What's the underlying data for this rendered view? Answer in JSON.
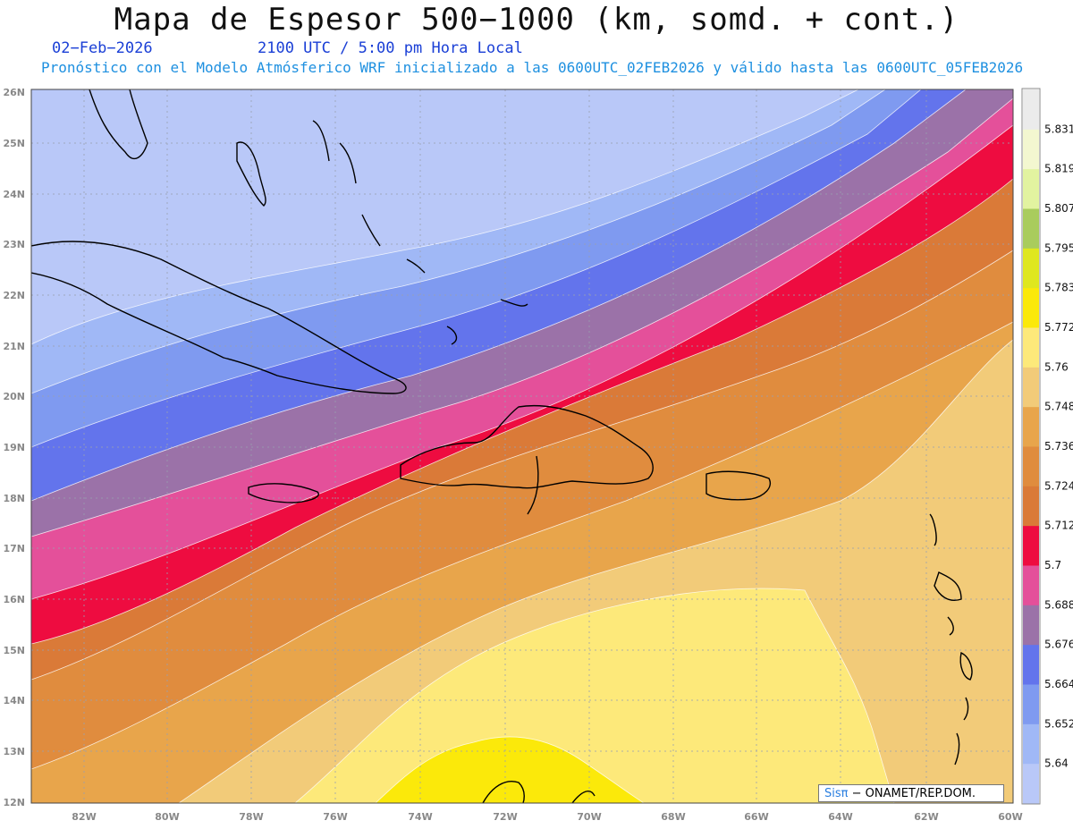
{
  "header": {
    "title": "Mapa de Espesor 500−1000 (km, somd. + cont.)",
    "date": "02−Feb−2026",
    "time": "2100 UTC / 5:00 pm Hora Local",
    "forecast": "Pronóstico con el Modelo Atmósferico WRF inicializado a las 0600UTC_02FEB2026 y válido hasta las  0600UTC_05FEB2026"
  },
  "axes": {
    "lat_labels": [
      "26N",
      "25N",
      "24N",
      "23N",
      "22N",
      "21N",
      "20N",
      "19N",
      "18N",
      "17N",
      "16N",
      "15N",
      "14N",
      "13N",
      "12N"
    ],
    "lon_labels": [
      "82W",
      "80W",
      "78W",
      "76W",
      "74W",
      "72W",
      "70W",
      "68W",
      "66W",
      "64W",
      "62W",
      "60W"
    ]
  },
  "legend": {
    "levels": [
      "5.831",
      "5.819",
      "5.807",
      "5.795",
      "5.783",
      "5.772",
      "5.76",
      "5.748",
      "5.736",
      "5.724",
      "5.712",
      "5.7",
      "5.688",
      "5.676",
      "5.664",
      "5.652",
      "5.64"
    ],
    "colors": [
      "#ebebeb",
      "#f3f7d0",
      "#e2f3a0",
      "#a9cc5d",
      "#dfe71f",
      "#fbe90a",
      "#fde97a",
      "#f2cb79",
      "#e8a54b",
      "#e08c3e",
      "#da7a38",
      "#ee0c40",
      "#e4509a",
      "#9b72a8",
      "#6374ec",
      "#7f9af0",
      "#a0b8f6",
      "#b9c8f8"
    ]
  },
  "footer": {
    "brand": "Sisπ",
    "org": "− ONAMET/REP.DOM."
  },
  "colors": {
    "band_fill": [
      "#b9c8f8",
      "#a0b8f6",
      "#7f9af0",
      "#6374ec",
      "#9b72a8",
      "#e4509a",
      "#ee0c40",
      "#da7a38",
      "#e08c3e",
      "#e8a54b",
      "#f2cb79",
      "#fde97a",
      "#fbe90a"
    ]
  }
}
